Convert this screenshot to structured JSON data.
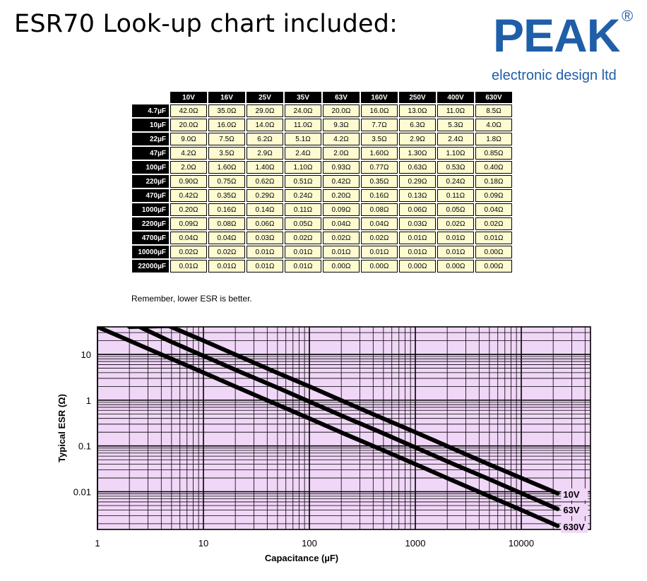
{
  "heading": "ESR70 Look-up chart included:",
  "logo": {
    "word": "PEAK",
    "registered": "®",
    "subtitle": "electronic design ltd"
  },
  "table": {
    "columns": [
      "10V",
      "16V",
      "25V",
      "35V",
      "63V",
      "160V",
      "250V",
      "400V",
      "630V"
    ],
    "rows": [
      {
        "cap": "4.7µF",
        "values": [
          "42.0Ω",
          "35.0Ω",
          "29.0Ω",
          "24.0Ω",
          "20.0Ω",
          "16.0Ω",
          "13.0Ω",
          "11.0Ω",
          "8.5Ω"
        ]
      },
      {
        "cap": "10µF",
        "values": [
          "20.0Ω",
          "16.0Ω",
          "14.0Ω",
          "11.0Ω",
          "9.3Ω",
          "7.7Ω",
          "6.3Ω",
          "5.3Ω",
          "4.0Ω"
        ]
      },
      {
        "cap": "22µF",
        "values": [
          "9.0Ω",
          "7.5Ω",
          "6.2Ω",
          "5.1Ω",
          "4.2Ω",
          "3.5Ω",
          "2.9Ω",
          "2.4Ω",
          "1.8Ω"
        ]
      },
      {
        "cap": "47µF",
        "values": [
          "4.2Ω",
          "3.5Ω",
          "2.9Ω",
          "2.4Ω",
          "2.0Ω",
          "1.60Ω",
          "1.30Ω",
          "1.10Ω",
          "0.85Ω"
        ]
      },
      {
        "cap": "100µF",
        "values": [
          "2.0Ω",
          "1.60Ω",
          "1.40Ω",
          "1.10Ω",
          "0.93Ω",
          "0.77Ω",
          "0.63Ω",
          "0.53Ω",
          "0.40Ω"
        ]
      },
      {
        "cap": "220µF",
        "values": [
          "0.90Ω",
          "0.75Ω",
          "0.62Ω",
          "0.51Ω",
          "0.42Ω",
          "0.35Ω",
          "0.29Ω",
          "0.24Ω",
          "0.18Ω"
        ]
      },
      {
        "cap": "470µF",
        "values": [
          "0.42Ω",
          "0.35Ω",
          "0.29Ω",
          "0.24Ω",
          "0.20Ω",
          "0.16Ω",
          "0.13Ω",
          "0.11Ω",
          "0.09Ω"
        ]
      },
      {
        "cap": "1000µF",
        "values": [
          "0.20Ω",
          "0.16Ω",
          "0.14Ω",
          "0.11Ω",
          "0.09Ω",
          "0.08Ω",
          "0.06Ω",
          "0.05Ω",
          "0.04Ω"
        ]
      },
      {
        "cap": "2200µF",
        "values": [
          "0.09Ω",
          "0.08Ω",
          "0.06Ω",
          "0.05Ω",
          "0.04Ω",
          "0.04Ω",
          "0.03Ω",
          "0.02Ω",
          "0.02Ω"
        ]
      },
      {
        "cap": "4700µF",
        "values": [
          "0.04Ω",
          "0.04Ω",
          "0.03Ω",
          "0.02Ω",
          "0.02Ω",
          "0.02Ω",
          "0.01Ω",
          "0.01Ω",
          "0.01Ω"
        ]
      },
      {
        "cap": "10000µF",
        "values": [
          "0.02Ω",
          "0.02Ω",
          "0.01Ω",
          "0.01Ω",
          "0.01Ω",
          "0.01Ω",
          "0.01Ω",
          "0.01Ω",
          "0.00Ω"
        ]
      },
      {
        "cap": "22000µF",
        "values": [
          "0.01Ω",
          "0.01Ω",
          "0.01Ω",
          "0.01Ω",
          "0.00Ω",
          "0.00Ω",
          "0.00Ω",
          "0.00Ω",
          "0.00Ω"
        ]
      }
    ]
  },
  "note": "Remember, lower ESR is better.",
  "colors": {
    "brand": "#1f5ea8",
    "cell": "#fefbd0",
    "plot_bg": "#f0d6f7"
  },
  "chart_data": {
    "type": "line",
    "xlabel": "Capacitance (µF)",
    "ylabel": "Typical ESR (Ω)",
    "xscale": "log",
    "yscale": "log",
    "xlim": [
      1,
      45000
    ],
    "ylim": [
      0.0015,
      40
    ],
    "xticks": [
      1,
      10,
      100,
      1000,
      10000
    ],
    "xtick_labels": [
      "1",
      "10",
      "100",
      "1000",
      "10000"
    ],
    "yticks": [
      10,
      1,
      0.1,
      0.01
    ],
    "ytick_labels": [
      "10",
      "1",
      "0.1",
      "0.01"
    ],
    "grid": true,
    "series": [
      {
        "name": "10V",
        "x": [
          2,
          4.7,
          10,
          22,
          47,
          100,
          220,
          470,
          1000,
          2200,
          4700,
          10000,
          22000
        ],
        "values": [
          40,
          42,
          20,
          9,
          4.2,
          2,
          0.9,
          0.42,
          0.2,
          0.09,
          0.042,
          0.02,
          0.0092
        ]
      },
      {
        "name": "63V",
        "x": [
          2.5,
          4.7,
          10,
          22,
          47,
          100,
          220,
          470,
          1000,
          2200,
          4700,
          10000,
          22000
        ],
        "values": [
          40,
          20,
          9.3,
          4.2,
          2,
          0.93,
          0.42,
          0.2,
          0.093,
          0.042,
          0.02,
          0.0093,
          0.0042
        ]
      },
      {
        "name": "630V",
        "x": [
          1,
          4.7,
          10,
          22,
          47,
          100,
          220,
          470,
          1000,
          2200,
          4700,
          10000,
          22000
        ],
        "values": [
          40,
          8.5,
          4,
          1.8,
          0.85,
          0.4,
          0.18,
          0.085,
          0.04,
          0.018,
          0.0085,
          0.004,
          0.0018
        ]
      }
    ]
  }
}
